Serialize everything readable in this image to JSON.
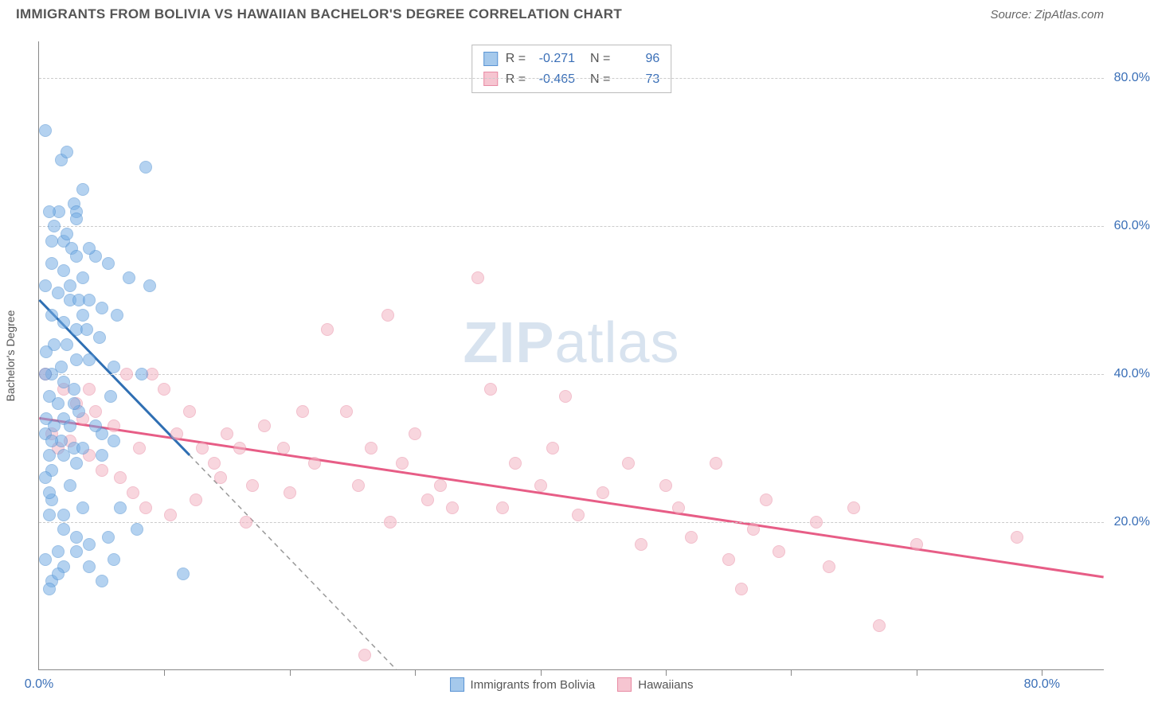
{
  "header": {
    "title": "IMMIGRANTS FROM BOLIVIA VS HAWAIIAN BACHELOR'S DEGREE CORRELATION CHART",
    "source": "Source: ZipAtlas.com"
  },
  "chart": {
    "type": "scatter",
    "y_axis_label": "Bachelor's Degree",
    "background_color": "#ffffff",
    "grid_color": "#cccccc",
    "axis_color": "#888888",
    "watermark": {
      "bold": "ZIP",
      "light": "atlas",
      "color": "#d8e3ef"
    },
    "xlim": [
      0,
      85
    ],
    "ylim": [
      0,
      85
    ],
    "ytick_labels": [
      {
        "value": 20,
        "label": "20.0%"
      },
      {
        "value": 40,
        "label": "40.0%"
      },
      {
        "value": 60,
        "label": "60.0%"
      },
      {
        "value": 80,
        "label": "80.0%"
      }
    ],
    "xtick_positions": [
      10,
      20,
      30,
      40,
      50,
      60,
      70,
      80
    ],
    "xtick_labels": [
      {
        "value": 0,
        "label": "0.0%"
      },
      {
        "value": 80,
        "label": "80.0%"
      }
    ],
    "series_a": {
      "name": "Immigrants from Bolivia",
      "color_fill": "#a5c9ec",
      "color_stroke": "#5a94d4",
      "trend_color": "#2f6fb3",
      "trend_extrap_dash": true,
      "R": "-0.271",
      "N": "96",
      "trend": {
        "x1": 0,
        "y1": 50,
        "x2": 12,
        "y2": 29
      },
      "trend_extrap": {
        "x1": 12,
        "y1": 29,
        "x2": 28.5,
        "y2": 0
      },
      "points": [
        [
          0.5,
          73
        ],
        [
          1.8,
          69
        ],
        [
          2.2,
          70
        ],
        [
          8.5,
          68
        ],
        [
          3.5,
          65
        ],
        [
          2.8,
          63
        ],
        [
          3.0,
          62
        ],
        [
          1.6,
          62
        ],
        [
          0.8,
          62
        ],
        [
          1.2,
          60
        ],
        [
          2.0,
          58
        ],
        [
          2.6,
          57
        ],
        [
          3.0,
          56
        ],
        [
          4.5,
          56
        ],
        [
          5.5,
          55
        ],
        [
          8.8,
          52
        ],
        [
          7.2,
          53
        ],
        [
          1.0,
          55
        ],
        [
          2.0,
          54
        ],
        [
          3.5,
          53
        ],
        [
          0.5,
          52
        ],
        [
          1.5,
          51
        ],
        [
          2.5,
          50
        ],
        [
          3.2,
          50
        ],
        [
          4.0,
          50
        ],
        [
          5.0,
          49
        ],
        [
          6.2,
          48
        ],
        [
          1.0,
          48
        ],
        [
          2.0,
          47
        ],
        [
          3.0,
          46
        ],
        [
          3.8,
          46
        ],
        [
          4.8,
          45
        ],
        [
          1.2,
          44
        ],
        [
          2.2,
          44
        ],
        [
          0.6,
          43
        ],
        [
          3.0,
          42
        ],
        [
          4.0,
          42
        ],
        [
          6.0,
          41
        ],
        [
          8.2,
          40
        ],
        [
          1.0,
          40
        ],
        [
          0.5,
          40
        ],
        [
          2.0,
          39
        ],
        [
          2.8,
          38
        ],
        [
          0.8,
          37
        ],
        [
          1.5,
          36
        ],
        [
          3.2,
          35
        ],
        [
          5.7,
          37
        ],
        [
          2.0,
          34
        ],
        [
          0.6,
          34
        ],
        [
          1.2,
          33
        ],
        [
          2.5,
          33
        ],
        [
          0.5,
          32
        ],
        [
          1.8,
          31
        ],
        [
          2.8,
          30
        ],
        [
          3.5,
          30
        ],
        [
          0.8,
          29
        ],
        [
          2.0,
          29
        ],
        [
          6.0,
          31
        ],
        [
          5.0,
          32
        ],
        [
          1.0,
          27
        ],
        [
          0.5,
          26
        ],
        [
          2.5,
          25
        ],
        [
          1.0,
          23
        ],
        [
          3.5,
          22
        ],
        [
          6.5,
          22
        ],
        [
          0.8,
          21
        ],
        [
          2.0,
          19
        ],
        [
          3.0,
          18
        ],
        [
          5.5,
          18
        ],
        [
          7.8,
          19
        ],
        [
          1.5,
          16
        ],
        [
          0.5,
          15
        ],
        [
          2.0,
          14
        ],
        [
          4.0,
          14
        ],
        [
          6.0,
          15
        ],
        [
          1.0,
          12
        ],
        [
          11.5,
          13
        ],
        [
          5.0,
          12
        ],
        [
          0.8,
          11
        ],
        [
          3.0,
          61
        ],
        [
          2.2,
          59
        ],
        [
          1.0,
          58
        ],
        [
          4.0,
          57
        ],
        [
          2.5,
          52
        ],
        [
          3.5,
          48
        ],
        [
          1.8,
          41
        ],
        [
          2.8,
          36
        ],
        [
          4.5,
          33
        ],
        [
          1.0,
          31
        ],
        [
          3.0,
          28
        ],
        [
          5.0,
          29
        ],
        [
          0.8,
          24
        ],
        [
          2.0,
          21
        ],
        [
          4.0,
          17
        ],
        [
          1.5,
          13
        ],
        [
          3.0,
          16
        ]
      ]
    },
    "series_b": {
      "name": "Hawaiians",
      "color_fill": "#f6c5d1",
      "color_stroke": "#e88ba4",
      "trend_color": "#e75d86",
      "R": "-0.465",
      "N": "73",
      "trend": {
        "x1": 0,
        "y1": 34,
        "x2": 85,
        "y2": 12.5
      },
      "points": [
        [
          0.5,
          40
        ],
        [
          2.0,
          38
        ],
        [
          3.5,
          34
        ],
        [
          4.5,
          35
        ],
        [
          6.0,
          33
        ],
        [
          7.0,
          40
        ],
        [
          8.0,
          30
        ],
        [
          9.0,
          40
        ],
        [
          10.0,
          38
        ],
        [
          11.0,
          32
        ],
        [
          12.0,
          35
        ],
        [
          13.0,
          30
        ],
        [
          14.0,
          28
        ],
        [
          15.0,
          32
        ],
        [
          16.0,
          30
        ],
        [
          17.0,
          25
        ],
        [
          18.0,
          33
        ],
        [
          19.5,
          30
        ],
        [
          21.0,
          35
        ],
        [
          22.0,
          28
        ],
        [
          23.0,
          46
        ],
        [
          24.5,
          35
        ],
        [
          25.5,
          25
        ],
        [
          26.5,
          30
        ],
        [
          27.8,
          48
        ],
        [
          28.0,
          20
        ],
        [
          29.0,
          28
        ],
        [
          30.0,
          32
        ],
        [
          31.0,
          23
        ],
        [
          32.0,
          25
        ],
        [
          33.0,
          22
        ],
        [
          35.0,
          53
        ],
        [
          36.0,
          38
        ],
        [
          37.0,
          22
        ],
        [
          38.0,
          28
        ],
        [
          40.0,
          25
        ],
        [
          41.0,
          30
        ],
        [
          42.0,
          37
        ],
        [
          43.0,
          21
        ],
        [
          45.0,
          24
        ],
        [
          47.0,
          28
        ],
        [
          48.0,
          17
        ],
        [
          50.0,
          25
        ],
        [
          51.0,
          22
        ],
        [
          52.0,
          18
        ],
        [
          54.0,
          28
        ],
        [
          55.0,
          15
        ],
        [
          56.0,
          11
        ],
        [
          57.0,
          19
        ],
        [
          58.0,
          23
        ],
        [
          59.0,
          16
        ],
        [
          62.0,
          20
        ],
        [
          63.0,
          14
        ],
        [
          65.0,
          22
        ],
        [
          67.0,
          6
        ],
        [
          70.0,
          17
        ],
        [
          78.0,
          18
        ],
        [
          26.0,
          2
        ],
        [
          4.0,
          29
        ],
        [
          5.0,
          27
        ],
        [
          6.5,
          26
        ],
        [
          7.5,
          24
        ],
        [
          8.5,
          22
        ],
        [
          10.5,
          21
        ],
        [
          12.5,
          23
        ],
        [
          14.5,
          26
        ],
        [
          16.5,
          20
        ],
        [
          20.0,
          24
        ],
        [
          2.5,
          31
        ],
        [
          3.0,
          36
        ],
        [
          4.0,
          38
        ],
        [
          1.0,
          32
        ],
        [
          1.5,
          30
        ]
      ]
    },
    "bottom_legend": [
      {
        "swatch": "blue",
        "label": "Immigrants from Bolivia"
      },
      {
        "swatch": "pink",
        "label": "Hawaiians"
      }
    ]
  }
}
